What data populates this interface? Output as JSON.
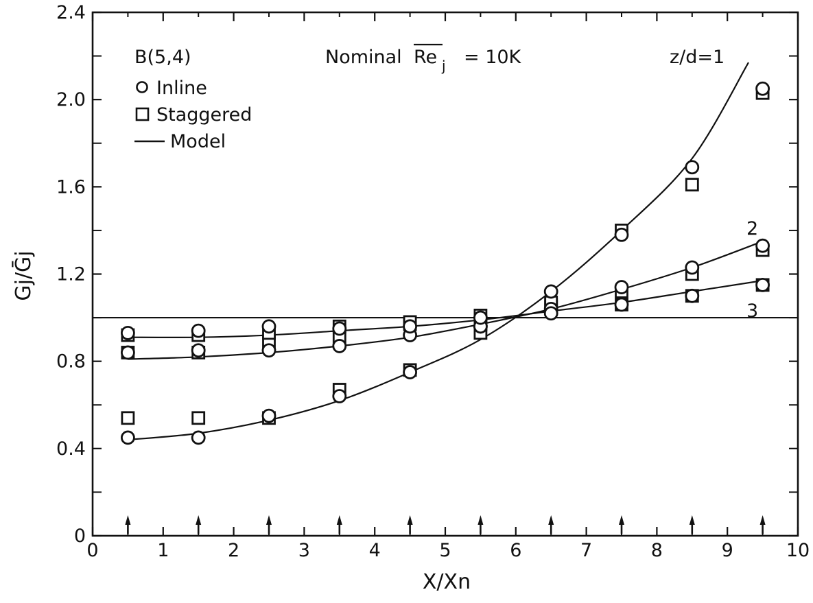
{
  "chart_data": {
    "type": "scatter",
    "xlabel": "X/Xn",
    "ylabel": "Gj/Ḡj",
    "xlim": [
      0,
      10
    ],
    "ylim": [
      0,
      2.4
    ],
    "x_ticks": [
      0,
      1,
      2,
      3,
      4,
      5,
      6,
      7,
      8,
      9,
      10
    ],
    "y_ticks": [
      0,
      0.4,
      0.8,
      1.2,
      1.6,
      2.0,
      2.4
    ],
    "x_tick_labels": [
      "0",
      "1",
      "2",
      "3",
      "4",
      "5",
      "6",
      "7",
      "8",
      "9",
      "10"
    ],
    "y_tick_labels": [
      "0",
      "0.4",
      "0.8",
      "1.2",
      "1.6",
      "2.0",
      "2.4"
    ],
    "grid": false,
    "legend_position": "top-left",
    "legend": {
      "title": "B(5,4)",
      "entries": [
        {
          "marker": "circle",
          "label": "Inline"
        },
        {
          "marker": "square",
          "label": "Staggered"
        },
        {
          "marker": "line",
          "label": "Model"
        }
      ]
    },
    "annotations": {
      "nominal": "Nominal",
      "re_symbol": "Re",
      "re_subscript": "j",
      "re_value": "= 10K",
      "curve_z1": "z/d=1",
      "curve_z2": "2",
      "curve_z3": "3"
    },
    "reference_line": {
      "y": 1.0
    },
    "arrows_x": [
      0.5,
      1.5,
      2.5,
      3.5,
      4.5,
      5.5,
      6.5,
      7.5,
      8.5,
      9.5
    ],
    "series": [
      {
        "curve": "z/d=1",
        "marker": "circle",
        "x": [
          0.5,
          1.5,
          2.5,
          3.5,
          4.5,
          5.5,
          6.5,
          7.5,
          8.5,
          9.5
        ],
        "y": [
          0.45,
          0.45,
          0.55,
          0.64,
          0.75,
          0.96,
          1.12,
          1.38,
          1.69,
          2.05
        ]
      },
      {
        "curve": "z/d=1",
        "marker": "square",
        "x": [
          0.5,
          1.5,
          2.5,
          3.5,
          4.5,
          5.5,
          6.5,
          7.5,
          8.5,
          9.5
        ],
        "y": [
          0.54,
          0.54,
          0.54,
          0.67,
          0.76,
          0.93,
          1.06,
          1.4,
          1.61,
          2.03
        ]
      },
      {
        "curve": "z/d=2",
        "marker": "circle",
        "x": [
          0.5,
          1.5,
          2.5,
          3.5,
          4.5,
          5.5,
          6.5,
          7.5,
          8.5,
          9.5
        ],
        "y": [
          0.84,
          0.85,
          0.85,
          0.87,
          0.92,
          0.96,
          1.04,
          1.14,
          1.23,
          1.33
        ]
      },
      {
        "curve": "z/d=2",
        "marker": "square",
        "x": [
          0.5,
          1.5,
          2.5,
          3.5,
          4.5,
          5.5,
          6.5,
          7.5,
          8.5,
          9.5
        ],
        "y": [
          0.84,
          0.84,
          0.89,
          0.91,
          0.97,
          0.97,
          1.05,
          1.12,
          1.2,
          1.31
        ]
      },
      {
        "curve": "z/d=3",
        "marker": "circle",
        "x": [
          0.5,
          1.5,
          2.5,
          3.5,
          4.5,
          5.5,
          6.5,
          7.5,
          8.5,
          9.5
        ],
        "y": [
          0.93,
          0.94,
          0.96,
          0.95,
          0.96,
          1.0,
          1.02,
          1.06,
          1.1,
          1.15
        ]
      },
      {
        "curve": "z/d=3",
        "marker": "square",
        "x": [
          0.5,
          1.5,
          2.5,
          3.5,
          4.5,
          5.5,
          6.5,
          7.5,
          8.5,
          9.5
        ],
        "y": [
          0.92,
          0.92,
          0.93,
          0.96,
          0.98,
          1.01,
          1.07,
          1.06,
          1.1,
          1.15
        ]
      }
    ],
    "model_curves": [
      {
        "label": "z/d=1",
        "x": [
          0.5,
          1.5,
          2.5,
          3.5,
          4.5,
          5.5,
          6.5,
          7.5,
          8.5,
          9.3
        ],
        "y": [
          0.44,
          0.47,
          0.53,
          0.62,
          0.75,
          0.9,
          1.12,
          1.4,
          1.73,
          2.17
        ]
      },
      {
        "label": "z/d=2",
        "x": [
          0.5,
          1.5,
          2.5,
          3.5,
          4.5,
          5.5,
          6.5,
          7.5,
          8.5,
          9.5
        ],
        "y": [
          0.81,
          0.82,
          0.84,
          0.87,
          0.91,
          0.97,
          1.04,
          1.13,
          1.23,
          1.35
        ]
      },
      {
        "label": "z/d=3",
        "x": [
          0.5,
          1.5,
          2.5,
          3.5,
          4.5,
          5.5,
          6.5,
          7.5,
          8.5,
          9.5
        ],
        "y": [
          0.91,
          0.91,
          0.92,
          0.94,
          0.96,
          0.99,
          1.03,
          1.07,
          1.12,
          1.17
        ]
      }
    ]
  }
}
